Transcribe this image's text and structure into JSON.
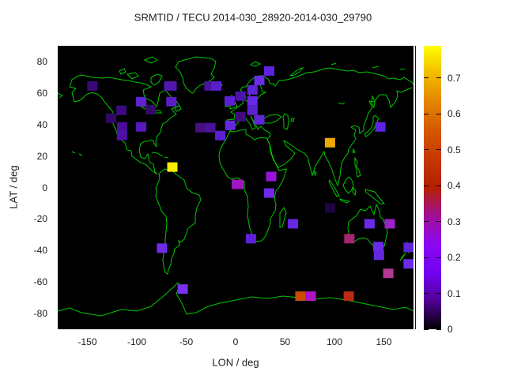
{
  "title": "SRMTID / TECU 2014-030_28920-2014-030_29790",
  "axes": {
    "x": {
      "label": "LON / deg",
      "range": [
        -180,
        180
      ],
      "ticks": [
        {
          "value": -150,
          "label": "-150"
        },
        {
          "value": -100,
          "label": "-100"
        },
        {
          "value": -50,
          "label": "-50"
        },
        {
          "value": 0,
          "label": "0"
        },
        {
          "value": 50,
          "label": "50"
        },
        {
          "value": 100,
          "label": "100"
        },
        {
          "value": 150,
          "label": "150"
        }
      ]
    },
    "y": {
      "label": "LAT / deg",
      "range": [
        -90,
        90
      ],
      "ticks": [
        {
          "value": 80,
          "label": "80"
        },
        {
          "value": 60,
          "label": "60"
        },
        {
          "value": 40,
          "label": "40"
        },
        {
          "value": 20,
          "label": "20"
        },
        {
          "value": 0,
          "label": "0"
        },
        {
          "value": -20,
          "label": "-20"
        },
        {
          "value": -40,
          "label": "-40"
        },
        {
          "value": -60,
          "label": "-60"
        },
        {
          "value": -80,
          "label": "-80"
        }
      ]
    }
  },
  "colorbar": {
    "max": 0.79,
    "gradient": [
      "#000000",
      "#510096",
      "#7202f2",
      "#8c07f2",
      "#a11096",
      "#b42000",
      "#c63700",
      "#d55700",
      "#e48300",
      "#f2ba00",
      "#ffff00"
    ],
    "ticks": [
      {
        "value": 0,
        "label": "0"
      },
      {
        "value": 0.1,
        "label": "0.1"
      },
      {
        "value": 0.2,
        "label": "0.2"
      },
      {
        "value": 0.3,
        "label": "0.3"
      },
      {
        "value": 0.4,
        "label": "0.4"
      },
      {
        "value": 0.5,
        "label": "0.5"
      },
      {
        "value": 0.6,
        "label": "0.6"
      },
      {
        "value": 0.7,
        "label": "0.7"
      }
    ]
  },
  "map": {
    "background": "#000000",
    "coastline_color": "#00c800",
    "coastline_paths": [
      "M15,52 L18,43 24,39 30,37 44,40 56,41 65,40 81,43 90,44 98,46 105,47 112,49 118,52 108,56 110,66 119,70 125,77 127,70 129,60 136,56 143,64 145,70 150,70 154,76 144,80 150,87 143,91 138,96 133,99 131,104 130,109 125,116 124,122 125,128 122,124 121,120 118,119 114,121 110,121 105,124 103,132 105,141 110,143 114,137 116,147 121,150 123,160 126,163 119,158 111,150 105,148 94,140 93,133 88,132 85,123 82,121 79,114 75,111 73,105 70,99 69,91 70,84 65,78 60,72 55,65 50,61 43,59 36,62 33,65 28,69 21,71 18,59 23,54 Z",
      "M170,60 L163,54 159,47 158,40 154,32 149,27 153,20 175,14 194,16 200,20 198,28 194,36 198,40 193,44 185,48 180,50 175,54 171,60 Z",
      "M128,162 L135,156 145,158 150,163 160,170 163,180 170,186 179,189 181,195 176,205 174,215 174,224 165,231 160,245 155,249 153,247 154,253 148,257 147,263 144,269 143,277 140,283 139,289 136,287 134,279 133,271 134,263 136,253 136,245 137,235 138,225 137,216 131,209 129,203 124,191 125,185 124,180 126,176 129,168 Z",
      "M218,108 L213,118 206,130 204,138 205,148 209,156 215,166 220,169 228,167 233,171 236,172 236,182 240,191 241,203 240,215 243,231 248,245 250,248 258,247 263,241 269,225 269,219 275,209 276,201 274,193 276,184 280,179 285,170 289,158 289,156 280,158 275,148 271,138 268,124 264,117 256,116 249,119 244,115 238,112 238,106 231,107 223,109 Z",
      "M219,107 L214,106 214,94 223,93 224,87 219,84 223,81 227,78 230,76 234,73 235,67 238,65 236,62 231,56 234,52 238,52 241,47 246,42 255,38 260,38 266,42 269,48 273,48 275,51 280,44 290,43 300,40 308,37 315,34 325,33 337,29 344,28 355,30 366,32 374,31 381,34 391,33 400,35 412,38 419,42 425,41 433,43 438,40 444,44 448,46 450,49",
      "M448,53 L441,56 434,59 429,57 430,64 427,71 421,78 419,69 415,62 407,62 400,71 394,70 398,78 393,85 390,94 387,101 387,107 382,111 381,103 375,101 371,103 377,107 375,113 377,118 372,125 368,131 367,136 362,143 359,149 358,156 357,165 354,177 350,167 347,157 343,148 338,139 337,134 331,144 326,152 322,164 319,153 316,141 312,136 304,132 297,127 291,123 286,120 289,127 294,131 300,136 295,143 287,150 279,154 273,145 269,134 268,125 265,118 269,114 268,110 262,107 257,102 253,106 250,99 244,89 247,95 250,104 246,106 243,99 238,92 233,93 229,96 224,102 219,107",
      "M240,68 L243,62 246,56 249,50 252,45 255,47 257,52 259,58 263,59 257,62 254,66 251,67 248,71 243,72 239,70 236,67",
      "M218,80 L227,77 225,73 222,68 220,63 217,68 220,74 218,77 Z",
      "M213,70 L217,69 217,76 212,77 Z",
      "M197,54 L206,52 208,49 202,47 195,50 Z",
      "M401,88 L406,92 403,98 400,105 396,110 390,115 388,112 393,108 397,103 399,97 399,91 Z",
      "M398,64 L401,70 400,78 397,72 Z",
      "M374,131 L376,135 373,135 Z",
      "M361,177 L364,183 368,187 372,182 374,177 372,170 368,166 364,170 Z",
      "M344,170 L350,179 356,190 353,191 347,180 343,172 Z",
      "M357,194 L364,196 369,197 366,199 358,196 Z",
      "M389,182 L397,184 401,185 408,194 413,200 408,200 402,195 396,190 390,186 Z",
      "M376,142 L379,147 378,153 381,158 383,164 379,166 378,158 376,150 Z",
      "M374,180 L377,184 376,189 373,185 Z",
      "M281,212 L286,205 289,211 284,229 281,230 Z",
      "M325,159 L327,161 326,164 324,162 Z",
      "M403,201 L400,214 395,203 389,209 383,207 378,215 368,223 367,231 369,243 369,248 374,249 380,245 386,243 392,245 396,250 401,255 408,257 413,254 417,236 416,230 411,219 408,217 407,209 Z",
      "M407,261 L410,263 409,266 406,265 Z",
      "M442,249 L446,254 444,262 441,258 Z",
      "M440,262 L437,267 433,272 436,267 Z",
      "M0,336 L15,332 30,338 55,342 80,334 100,336 118,330 135,316 146,306 152,300 155,304 150,314 157,326 163,340 175,338 190,330 205,326 225,322 245,318 265,320 285,317 305,319 325,321 345,319 365,322 385,326 405,330 425,334 440,331 450,336",
      "M106,77 L112,76 114,79 110,80 Z M115,78 L120,79 121,83 116,82 Z M122,82 L129,82 131,85 124,85 Z",
      "M119,135 L126,136 133,140 M135,141 L140,142",
      "M259,97 L264,98 270,98 277,95 283,90 277,87 268,88 261,92 Z",
      "M287,86 L291,88 292,96 291,103 290,106 286,104 286,97 285,90 Z",
      "M296,92 L299,92 298,96 295,95 Z",
      "M266,181 L269,181 269,185 266,185 Z",
      "M355,72 L360,74 363,72",
      "M244,24 L250,20 256,23 250,26 Z",
      "M294,38 L300,33 306,29 310,28 306,33 299,37 Z",
      "M346,24 L352,22",
      "M398,28 L406,26",
      "M433,30 L439,29",
      "M118,40 L126,36 132,38 128,46 122,50 118,46 Z",
      "M88,36 L98,34 102,38 94,42 Z",
      "M110,18 L120,14 126,18 118,22 Z",
      "M78,32 L84,29 86,33 80,36 Z",
      "M148,78 L154,76 156,80 150,83 Z",
      "M18,134 L22,136 M27,137 L31,139",
      "M0,60 L6,63 2,66"
    ]
  },
  "chart_data": {
    "type": "scatter",
    "subtype": "geo-heat-squares",
    "title": "SRMTID / TECU 2014-030_28920-2014-030_29790",
    "xlabel": "LON / deg",
    "ylabel": "LAT / deg",
    "xlim": [
      -180,
      180
    ],
    "ylim": [
      -90,
      90
    ],
    "colorbar_range": [
      0,
      0.79
    ],
    "points": [
      {
        "lon": -145,
        "lat": 64.5,
        "value": 0.12,
        "color": "#3a0878"
      },
      {
        "lon": -126,
        "lat": 44,
        "value": 0.1,
        "color": "#330668"
      },
      {
        "lon": -115.5,
        "lat": 49,
        "value": 0.13,
        "color": "#3c0a7e"
      },
      {
        "lon": -86,
        "lat": 49.5,
        "value": 0.11,
        "color": "#350870"
      },
      {
        "lon": -115,
        "lat": 38.5,
        "value": 0.16,
        "color": "#4a0e9a"
      },
      {
        "lon": -115,
        "lat": 33,
        "value": 0.17,
        "color": "#4e12a6"
      },
      {
        "lon": -95.5,
        "lat": 38.5,
        "value": 0.19,
        "color": "#5a18c0"
      },
      {
        "lon": -95.5,
        "lat": 54.5,
        "value": 0.21,
        "color": "#6022d2"
      },
      {
        "lon": -65,
        "lat": 54.5,
        "value": 0.2,
        "color": "#5a1ec8"
      },
      {
        "lon": -66,
        "lat": 64.5,
        "value": 0.18,
        "color": "#5016ae",
        "w": 16
      },
      {
        "lon": -26.5,
        "lat": 64.5,
        "value": 0.16,
        "color": "#4a12a0"
      },
      {
        "lon": -19.5,
        "lat": 64.5,
        "value": 0.19,
        "color": "#5a20c8"
      },
      {
        "lon": -64,
        "lat": 13,
        "value": 0.78,
        "color": "#ffec00"
      },
      {
        "lon": -35.5,
        "lat": 38,
        "value": 0.14,
        "color": "#44107e"
      },
      {
        "lon": -25.5,
        "lat": 38,
        "value": 0.16,
        "color": "#4a129b"
      },
      {
        "lon": -15.5,
        "lat": 33,
        "value": 0.2,
        "color": "#5c1fd2"
      },
      {
        "lon": -5.5,
        "lat": 39.5,
        "value": 0.22,
        "color": "#6527e2"
      },
      {
        "lon": 5,
        "lat": 45,
        "value": 0.13,
        "color": "#400b80"
      },
      {
        "lon": -6,
        "lat": 55,
        "value": 0.2,
        "color": "#5c20d4"
      },
      {
        "lon": 5,
        "lat": 58,
        "value": 0.17,
        "color": "#4c14a8"
      },
      {
        "lon": 17,
        "lat": 62,
        "value": 0.21,
        "color": "#5e24da"
      },
      {
        "lon": 24,
        "lat": 68,
        "value": 0.23,
        "color": "#6c2cec"
      },
      {
        "lon": 34,
        "lat": 74,
        "value": 0.21,
        "color": "#5e22e0"
      },
      {
        "lon": 17,
        "lat": 55,
        "value": 0.22,
        "color": "#6828e6"
      },
      {
        "lon": 17,
        "lat": 49,
        "value": 0.2,
        "color": "#5c20ce"
      },
      {
        "lon": 24,
        "lat": 43,
        "value": 0.21,
        "color": "#6024da"
      },
      {
        "lon": 95.5,
        "lat": 28.5,
        "value": 0.66,
        "color": "#f0a800"
      },
      {
        "lon": 146.5,
        "lat": 38.5,
        "value": 0.21,
        "color": "#5c24e2"
      },
      {
        "lon": 2,
        "lat": 2,
        "value": 0.3,
        "color": "#a016c0",
        "w": 15
      },
      {
        "lon": 36,
        "lat": 7,
        "value": 0.28,
        "color": "#9a14d8"
      },
      {
        "lon": 34,
        "lat": -3.5,
        "value": 0.23,
        "color": "#6e2ae6"
      },
      {
        "lon": 15.5,
        "lat": -32.5,
        "value": 0.21,
        "color": "#5e20da"
      },
      {
        "lon": 58,
        "lat": -23,
        "value": 0.22,
        "color": "#6627e2"
      },
      {
        "lon": 95.5,
        "lat": -13,
        "value": 0.06,
        "color": "#1e0440"
      },
      {
        "lon": 135.5,
        "lat": -23,
        "value": 0.23,
        "color": "#6c2ae8"
      },
      {
        "lon": 156,
        "lat": -23,
        "value": 0.29,
        "color": "#9c22cc"
      },
      {
        "lon": 115,
        "lat": -32.5,
        "value": 0.35,
        "color": "#a42470"
      },
      {
        "lon": 144.5,
        "lat": -37.5,
        "value": 0.23,
        "color": "#6c2ae8"
      },
      {
        "lon": 145,
        "lat": -43,
        "value": 0.22,
        "color": "#6428e0"
      },
      {
        "lon": 175,
        "lat": -38,
        "value": 0.21,
        "color": "#5e24d8"
      },
      {
        "lon": 175,
        "lat": -48.5,
        "value": 0.23,
        "color": "#6c2ae4"
      },
      {
        "lon": 154.5,
        "lat": -54.5,
        "value": 0.37,
        "color": "#b23a92"
      },
      {
        "lon": -74.5,
        "lat": -38.5,
        "value": 0.23,
        "color": "#6e2cea"
      },
      {
        "lon": -53.5,
        "lat": -64.5,
        "value": 0.25,
        "color": "#7830f0"
      },
      {
        "lon": 65.5,
        "lat": -69,
        "value": 0.52,
        "color": "#c84c08"
      },
      {
        "lon": 76,
        "lat": -69,
        "value": 0.31,
        "color": "#ae14c6"
      },
      {
        "lon": 114.5,
        "lat": -69,
        "value": 0.43,
        "color": "#bc2a14"
      }
    ]
  }
}
